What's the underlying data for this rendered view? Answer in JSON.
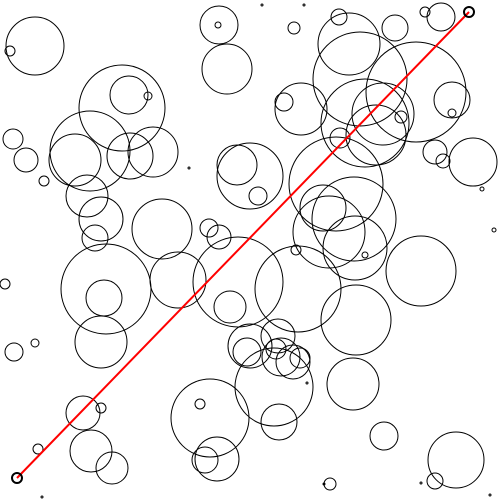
{
  "scene": {
    "background": "#ffffff",
    "circle_stroke": "#000000",
    "path_color": "#ff0000",
    "endpoint_color": "#000000",
    "obstacle_count": 107
  }
}
